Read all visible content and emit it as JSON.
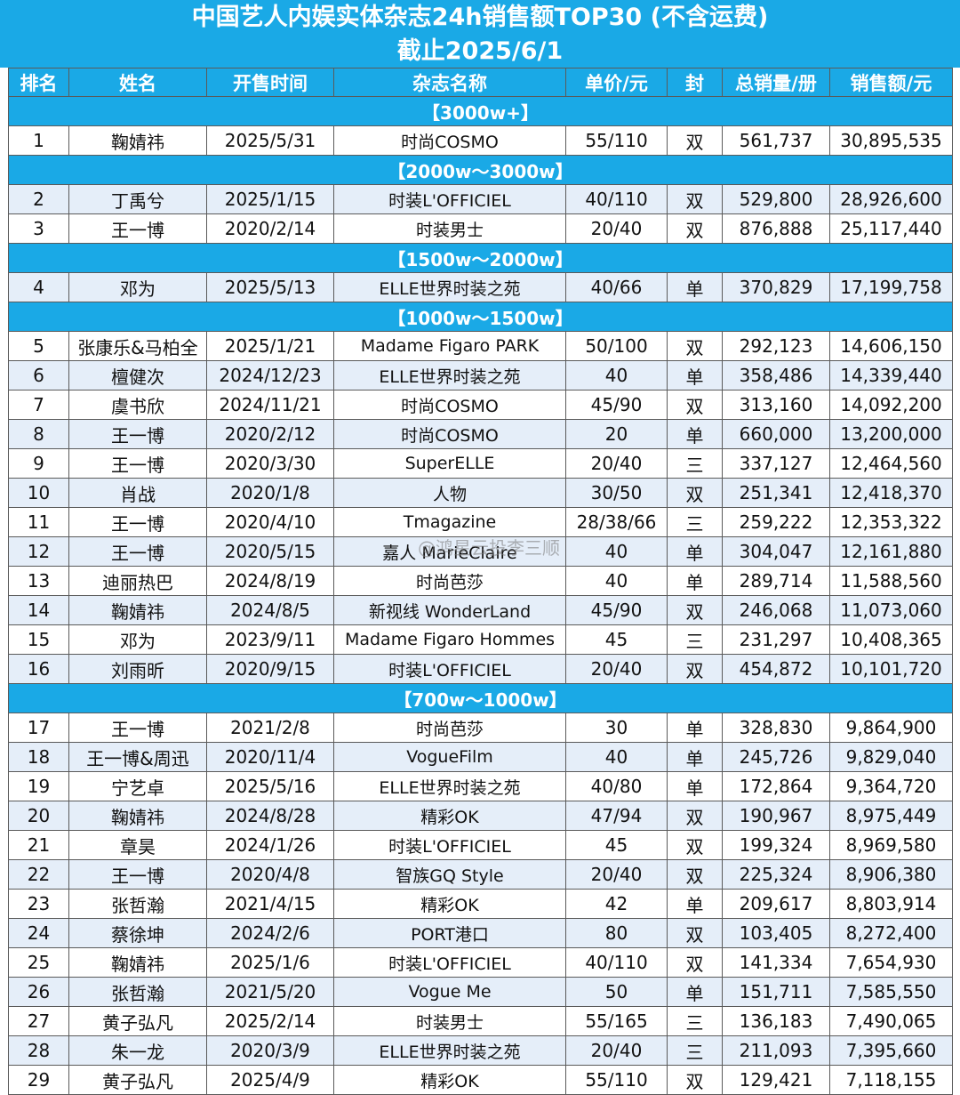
{
  "title": "中国艺人内娱实体杂志24h销售额TOP30 (不含运费)",
  "subtitle": "截止2025/6/1",
  "headers": [
    "排名",
    "姓名",
    "开售时间",
    "杂志名称",
    "单价/元",
    "封",
    "总销量/册",
    "销售额/元"
  ],
  "sections": [
    {
      "label": "【3000w+】",
      "rows": [
        [
          "1",
          "鞠婧祎",
          "2025/5/31",
          "时尚COSMO",
          "55/110",
          "双",
          "561,737",
          "30,895,535"
        ]
      ]
    },
    {
      "label": "【2000w～3000w】",
      "rows": [
        [
          "2",
          "丁禹兮",
          "2025/1/15",
          "时装L'OFFICIEL",
          "40/110",
          "双",
          "529,800",
          "28,926,600"
        ],
        [
          "3",
          "王一博",
          "2020/2/14",
          "时装男士",
          "20/40",
          "双",
          "876,888",
          "25,117,440"
        ]
      ]
    },
    {
      "label": "【1500w～2000w】",
      "rows": [
        [
          "4",
          "邓为",
          "2025/5/13",
          "ELLE世界时装之苑",
          "40/66",
          "单",
          "370,829",
          "17,199,758"
        ]
      ]
    },
    {
      "label": "【1000w～1500w】",
      "rows": [
        [
          "5",
          "张康乐&马柏全",
          "2025/1/21",
          "Madame Figaro PARK",
          "50/100",
          "双",
          "292,123",
          "14,606,150"
        ],
        [
          "6",
          "檀健次",
          "2024/12/23",
          "ELLE世界时装之苑",
          "40",
          "单",
          "358,486",
          "14,339,440"
        ],
        [
          "7",
          "虞书欣",
          "2024/11/21",
          "时尚COSMO",
          "45/90",
          "双",
          "313,160",
          "14,092,200"
        ],
        [
          "8",
          "王一博",
          "2020/2/12",
          "时尚COSMO",
          "20",
          "单",
          "660,000",
          "13,200,000"
        ],
        [
          "9",
          "王一博",
          "2020/3/30",
          "SuperELLE",
          "20/40",
          "三",
          "337,127",
          "12,464,560"
        ],
        [
          "10",
          "肖战",
          "2020/1/8",
          "人物",
          "30/50",
          "双",
          "251,341",
          "12,418,370"
        ],
        [
          "11",
          "王一博",
          "2020/4/10",
          "Tmagazine",
          "28/38/66",
          "三",
          "259,222",
          "12,353,322"
        ],
        [
          "12",
          "王一博",
          "2020/5/15",
          "嘉人 MarieClaire",
          "40",
          "单",
          "304,047",
          "12,161,880"
        ],
        [
          "13",
          "迪丽热巴",
          "2024/8/19",
          "时尚芭莎",
          "40",
          "单",
          "289,714",
          "11,588,560"
        ],
        [
          "14",
          "鞠婧祎",
          "2024/8/5",
          "新视线 WonderLand",
          "45/90",
          "双",
          "246,068",
          "11,073,060"
        ],
        [
          "15",
          "邓为",
          "2023/9/11",
          "Madame Figaro Hommes",
          "45",
          "三",
          "231,297",
          "10,408,365"
        ],
        [
          "16",
          "刘雨昕",
          "2020/9/15",
          "时装L'OFFICIEL",
          "20/40",
          "双",
          "454,872",
          "10,101,720"
        ]
      ]
    },
    {
      "label": "【700w～1000w】",
      "rows": [
        [
          "17",
          "王一博",
          "2021/2/8",
          "时尚芭莎",
          "30",
          "单",
          "328,830",
          "9,864,900"
        ],
        [
          "18",
          "王一博&周迅",
          "2020/11/4",
          "VogueFilm",
          "40",
          "单",
          "245,726",
          "9,829,040"
        ],
        [
          "19",
          "宁艺卓",
          "2025/5/16",
          "ELLE世界时装之苑",
          "40/80",
          "单",
          "172,864",
          "9,364,720"
        ],
        [
          "20",
          "鞠婧祎",
          "2024/8/28",
          "精彩OK",
          "47/94",
          "双",
          "190,967",
          "8,975,449"
        ],
        [
          "21",
          "章昊",
          "2024/1/26",
          "时装L'OFFICIEL",
          "45",
          "双",
          "199,324",
          "8,969,580"
        ],
        [
          "22",
          "王一博",
          "2020/4/8",
          "智族GQ Style",
          "20/40",
          "双",
          "225,324",
          "8,906,380"
        ],
        [
          "23",
          "张哲瀚",
          "2021/4/15",
          "精彩OK",
          "42",
          "单",
          "209,617",
          "8,803,914"
        ],
        [
          "24",
          "蔡徐坤",
          "2024/2/6",
          "PORT港口",
          "80",
          "双",
          "103,405",
          "8,272,400"
        ],
        [
          "25",
          "鞠婧祎",
          "2025/1/6",
          "时装L'OFFICIEL",
          "40/110",
          "双",
          "141,334",
          "7,654,930"
        ],
        [
          "26",
          "张哲瀚",
          "2021/5/20",
          "Vogue Me",
          "50",
          "单",
          "151,711",
          "7,585,550"
        ],
        [
          "27",
          "黄子弘凡",
          "2025/2/14",
          "时装男士",
          "55/165",
          "三",
          "136,183",
          "7,490,065"
        ],
        [
          "28",
          "朱一龙",
          "2020/3/9",
          "ELLE世界时装之苑",
          "20/40",
          "三",
          "211,093",
          "7,395,660"
        ],
        [
          "29",
          "黄子弘凡",
          "2025/4/9",
          "精彩OK",
          "55/110",
          "双",
          "129,421",
          "7,118,155"
        ]
      ]
    }
  ],
  "watermark": "@鸿星云投李三顺"
}
